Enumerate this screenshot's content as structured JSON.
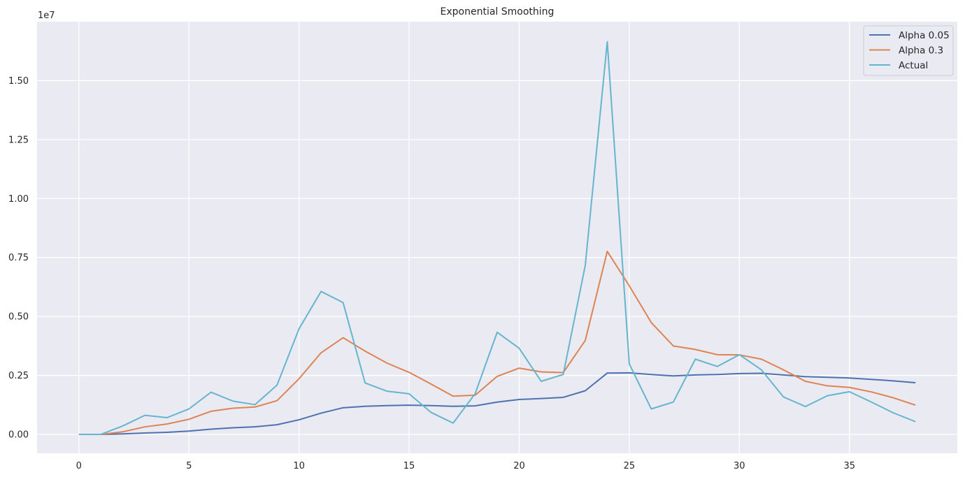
{
  "chart_data": {
    "type": "line",
    "title": "Exponential Smoothing",
    "xlabel": "",
    "ylabel": "",
    "offset_text": "1e7",
    "xlim": [
      -1.9,
      39.9
    ],
    "ylim": [
      -800000,
      17500000
    ],
    "xticks": [
      0,
      5,
      10,
      15,
      20,
      25,
      30,
      35
    ],
    "yticks": [
      0,
      2500000,
      5000000,
      7500000,
      10000000,
      12500000,
      15000000
    ],
    "ytick_labels": [
      "0.00",
      "0.25",
      "0.50",
      "0.75",
      "1.00",
      "1.25",
      "1.50"
    ],
    "grid": true,
    "background": "#eaeaf2",
    "grid_color": "#ffffff",
    "legend_position": "top-right",
    "x": [
      0,
      1,
      2,
      3,
      4,
      5,
      6,
      7,
      8,
      9,
      10,
      11,
      12,
      13,
      14,
      15,
      16,
      17,
      18,
      19,
      20,
      21,
      22,
      23,
      24,
      25,
      26,
      27,
      28,
      29,
      30,
      31,
      32,
      33,
      34,
      35,
      36,
      37,
      38
    ],
    "series": [
      {
        "name": "Alpha 0.05",
        "color": "#4c72b0",
        "values": [
          0,
          0,
          20000,
          60000,
          90000,
          140000,
          220000,
          280000,
          320000,
          410000,
          620000,
          900000,
          1130000,
          1190000,
          1220000,
          1240000,
          1220000,
          1190000,
          1210000,
          1370000,
          1480000,
          1520000,
          1570000,
          1850000,
          2600000,
          2610000,
          2540000,
          2480000,
          2520000,
          2540000,
          2580000,
          2590000,
          2520000,
          2450000,
          2420000,
          2390000,
          2330000,
          2270000,
          2190000
        ]
      },
      {
        "name": "Alpha 0.3",
        "color": "#dd8452",
        "values": [
          0,
          0,
          110000,
          320000,
          440000,
          640000,
          980000,
          1110000,
          1160000,
          1430000,
          2360000,
          3460000,
          4100000,
          3530000,
          3020000,
          2630000,
          2130000,
          1620000,
          1660000,
          2460000,
          2810000,
          2650000,
          2620000,
          3980000,
          7760000,
          6300000,
          4740000,
          3750000,
          3600000,
          3380000,
          3370000,
          3190000,
          2740000,
          2250000,
          2060000,
          1990000,
          1800000,
          1550000,
          1240000
        ]
      },
      {
        "name": "Actual",
        "color": "#64b5cd",
        "values": [
          0,
          0,
          360000,
          810000,
          710000,
          1080000,
          1790000,
          1410000,
          1260000,
          2090000,
          4480000,
          6060000,
          5590000,
          2180000,
          1830000,
          1720000,
          930000,
          480000,
          1730000,
          4330000,
          3650000,
          2250000,
          2540000,
          7160000,
          16650000,
          2990000,
          1080000,
          1370000,
          3190000,
          2880000,
          3380000,
          2740000,
          1590000,
          1180000,
          1640000,
          1810000,
          1370000,
          910000,
          540000
        ]
      }
    ]
  }
}
